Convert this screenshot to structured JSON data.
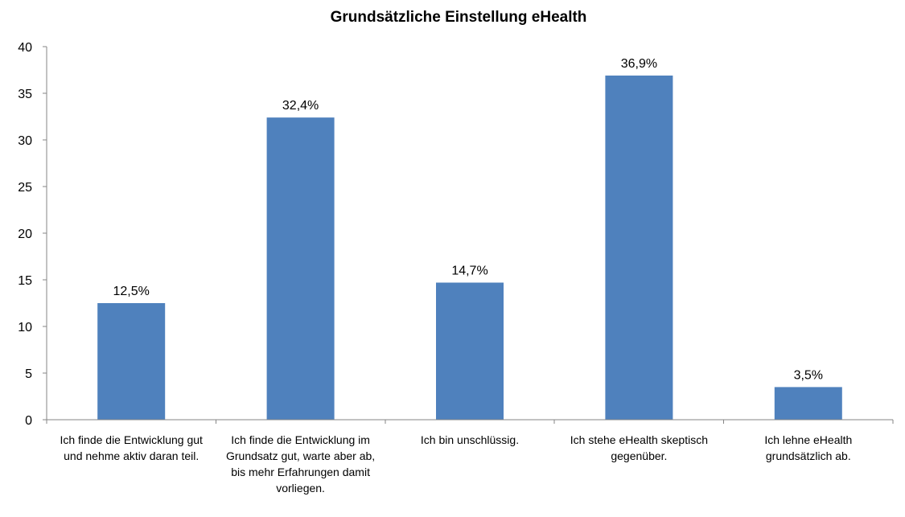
{
  "chart_data": {
    "type": "bar",
    "title": "Grundsätzliche Einstellung eHealth",
    "categories": [
      [
        "Ich finde die Entwicklung gut",
        "und nehme aktiv daran teil."
      ],
      [
        "Ich finde die Entwicklung im",
        "Grundsatz gut, warte aber ab,",
        "bis mehr Erfahrungen damit",
        "vorliegen."
      ],
      [
        "Ich bin unschlüssig."
      ],
      [
        "Ich stehe eHealth skeptisch",
        "gegenüber."
      ],
      [
        "Ich lehne eHealth",
        "grundsätzlich ab."
      ]
    ],
    "values": [
      12.5,
      32.4,
      14.7,
      36.9,
      3.5
    ],
    "value_labels": [
      "12,5%",
      "32,4%",
      "14,7%",
      "36,9%",
      "3,5%"
    ],
    "ylim": [
      0,
      40
    ],
    "yticks": [
      0,
      5,
      10,
      15,
      20,
      25,
      30,
      35,
      40
    ],
    "xlabel": "",
    "ylabel": "",
    "grid": false,
    "legend": "none",
    "bar_color": "#4f81bd"
  }
}
